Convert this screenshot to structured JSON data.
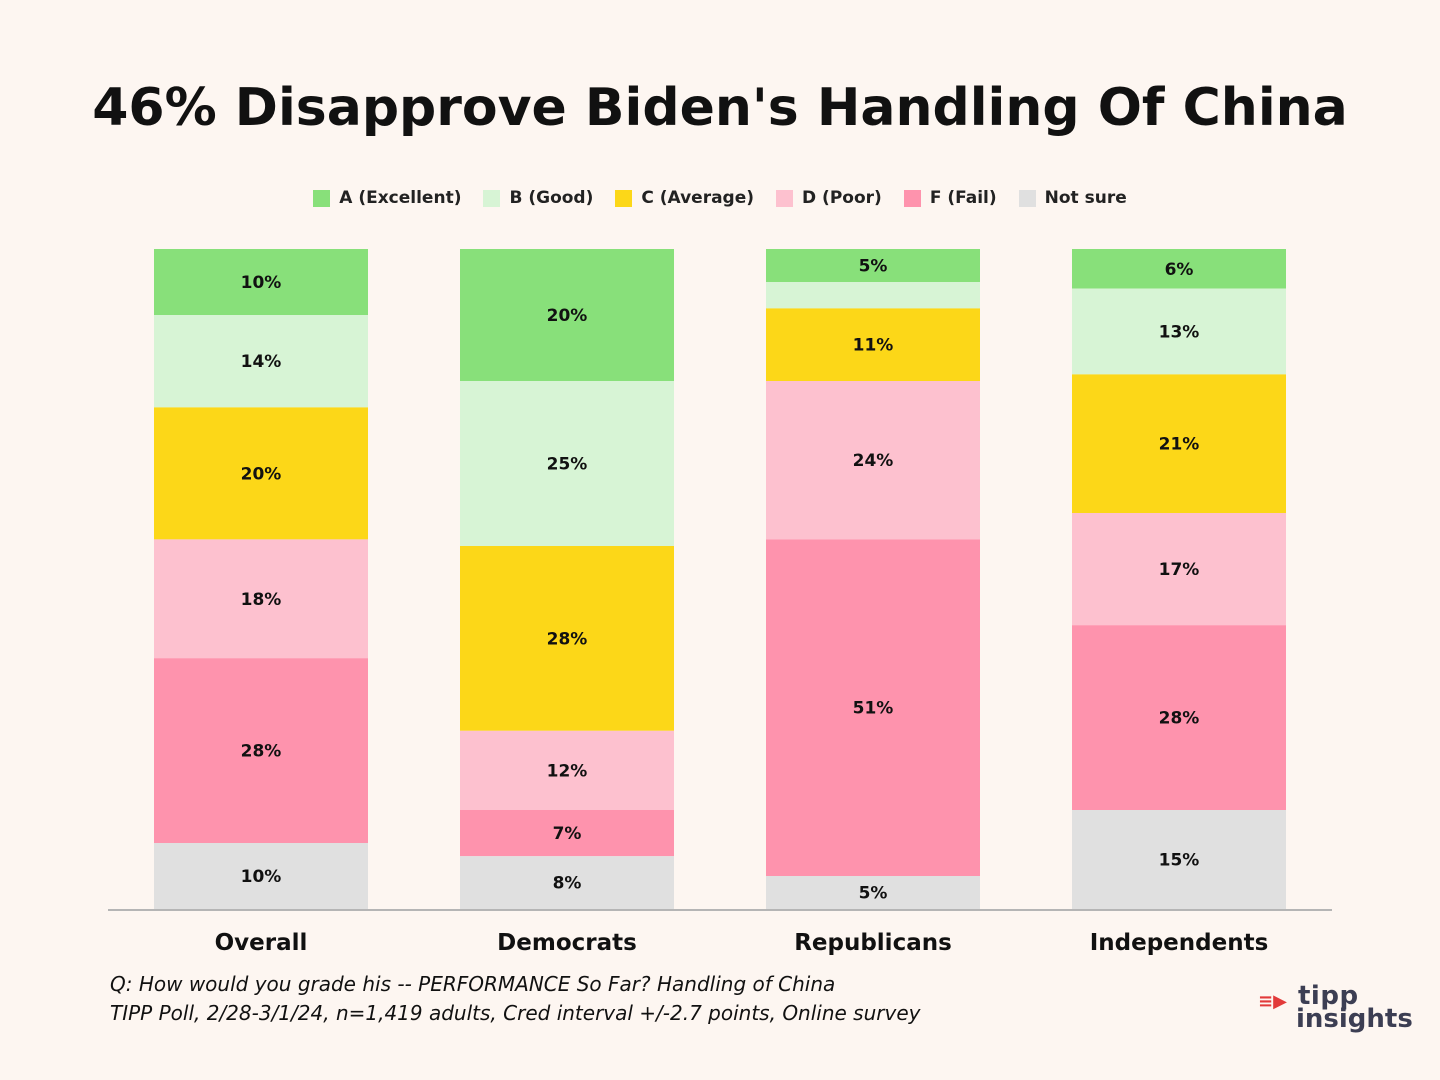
{
  "title": "46% Disapprove Biden's Handling Of China",
  "legend": [
    {
      "label": "A (Excellent)",
      "color": "#88e07a"
    },
    {
      "label": "B (Good)",
      "color": "#d7f4d5"
    },
    {
      "label": "C (Average)",
      "color": "#fcd718"
    },
    {
      "label": "D (Poor)",
      "color": "#fdc1cf"
    },
    {
      "label": "F (Fail)",
      "color": "#fe93ad"
    },
    {
      "label": "Not sure",
      "color": "#e0e0e0"
    }
  ],
  "chart_data": {
    "type": "bar",
    "stacked": true,
    "categories": [
      "Overall",
      "Democrats",
      "Republicans",
      "Independents"
    ],
    "series": [
      {
        "name": "A (Excellent)",
        "values": [
          10,
          20,
          5,
          6
        ],
        "labels": [
          "10%",
          "20%",
          "5%",
          "6%"
        ]
      },
      {
        "name": "B (Good)",
        "values": [
          14,
          25,
          4,
          13
        ],
        "labels": [
          "14%",
          "25%",
          "",
          "13%"
        ]
      },
      {
        "name": "C (Average)",
        "values": [
          20,
          28,
          11,
          21
        ],
        "labels": [
          "20%",
          "28%",
          "11%",
          "21%"
        ]
      },
      {
        "name": "D (Poor)",
        "values": [
          18,
          12,
          24,
          17
        ],
        "labels": [
          "18%",
          "12%",
          "24%",
          "17%"
        ]
      },
      {
        "name": "F (Fail)",
        "values": [
          28,
          7,
          51,
          28
        ],
        "labels": [
          "28%",
          "7%",
          "51%",
          "28%"
        ]
      },
      {
        "name": "Not sure",
        "values": [
          10,
          8,
          5,
          15
        ],
        "labels": [
          "10%",
          "8%",
          "5%",
          "15%"
        ]
      }
    ],
    "ylim": [
      0,
      100
    ]
  },
  "footnote": {
    "line1": "Q:  How would you grade his -- PERFORMANCE So Far?  Handling of China",
    "line2": "TIPP Poll, 2/28-3/1/24, n=1,419 adults, Cred interval +/-2.7 points, Online survey"
  },
  "logo": {
    "line1": "tipp",
    "line2": "insights",
    "arrow": "≡▶"
  }
}
